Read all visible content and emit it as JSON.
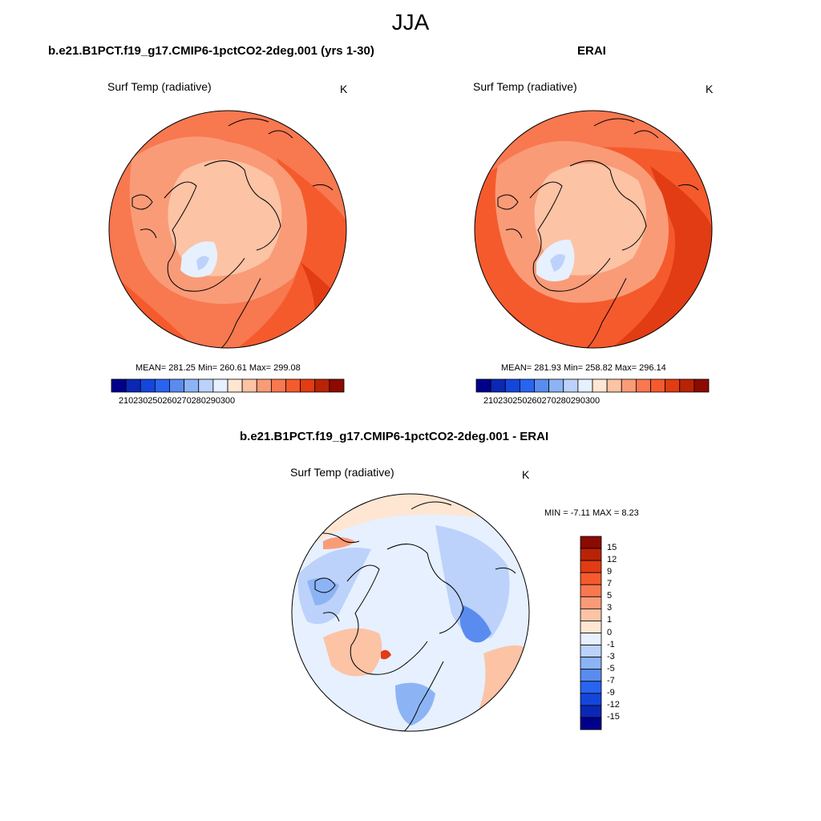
{
  "figure": {
    "title": "JJA"
  },
  "panels": {
    "model": {
      "title": "b.e21.B1PCT.f19_g17.CMIP6-1pctCO2-2deg.001 (yrs 1-30)",
      "variable": "Surf Temp (radiative)",
      "units": "K",
      "stats": {
        "mean": "281.25",
        "min": "260.61",
        "max": "299.08",
        "text": "MEAN= 281.25  Min= 260.61  Max= 299.08"
      }
    },
    "obs": {
      "title": "ERAI",
      "variable": "Surf Temp (radiative)",
      "units": "K",
      "stats": {
        "mean": "281.93",
        "min": "258.82",
        "max": "296.14",
        "text": "MEAN= 281.93  Min= 258.82  Max= 296.14"
      }
    },
    "diff": {
      "title": "b.e21.B1PCT.f19_g17.CMIP6-1pctCO2-2deg.001 - ERAI",
      "variable": "Surf Temp (radiative)",
      "units": "K",
      "stats": {
        "min": "-7.11",
        "max": "8.23",
        "text": "MIN =  -7.11 MAX =   8.23"
      }
    }
  },
  "colorbars": {
    "abs": {
      "labels": [
        "210",
        "230",
        "250",
        "260",
        "270",
        "280",
        "290",
        "300"
      ],
      "colors": [
        "#00008b",
        "#0a28b4",
        "#1446dc",
        "#2864f0",
        "#5a8cf0",
        "#8cb4f5",
        "#bcd2fa",
        "#e6f0ff",
        "#ffe6d2",
        "#fcc3a5",
        "#fa9b78",
        "#f87850",
        "#f55a2d",
        "#e13c14",
        "#b92305",
        "#8c0a00"
      ]
    },
    "diff": {
      "labels": [
        "15",
        "12",
        "9",
        "7",
        "5",
        "3",
        "1",
        "0",
        "-1",
        "-3",
        "-5",
        "-7",
        "-9",
        "-12",
        "-15"
      ],
      "colors": [
        "#8c0a00",
        "#b92305",
        "#e13c14",
        "#f55a2d",
        "#f87850",
        "#fa9b78",
        "#fcc3a5",
        "#ffe6d2",
        "#e6f0ff",
        "#bcd2fa",
        "#8cb4f5",
        "#5a8cf0",
        "#2864f0",
        "#1446dc",
        "#0a28b4",
        "#00008b"
      ]
    }
  }
}
